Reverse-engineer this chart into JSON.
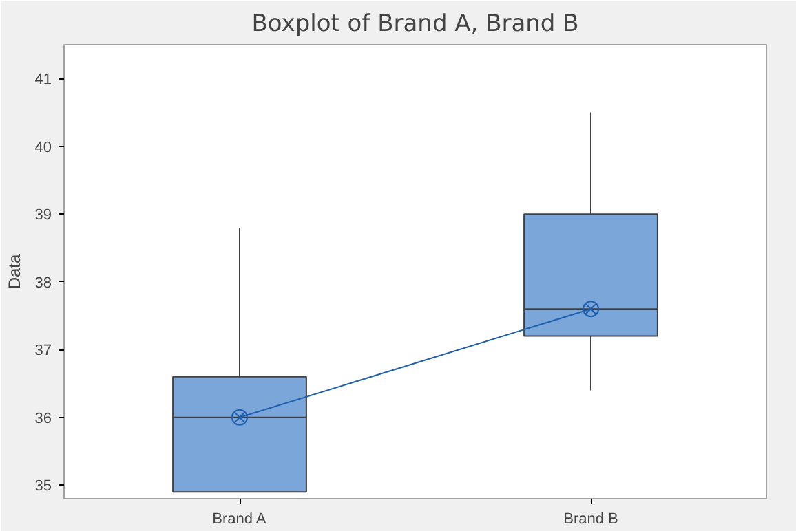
{
  "chart_data": {
    "type": "box",
    "title": "Boxplot of Brand A, Brand B",
    "ylabel": "Data",
    "categories": [
      "Brand A",
      "Brand B"
    ],
    "color": "#7ba6d9",
    "boxes": [
      {
        "low": 34.9,
        "q1": 34.9,
        "median": 36.0,
        "q3": 36.6,
        "high": 38.8,
        "mean": 36.0
      },
      {
        "low": 36.4,
        "q1": 37.2,
        "median": 37.6,
        "q3": 39.0,
        "high": 40.5,
        "mean": 37.6
      }
    ],
    "series": [
      {
        "type": "line",
        "color": "#1f5fae",
        "values": [
          36.0,
          37.6
        ]
      }
    ],
    "ylim": [
      34.8,
      41.5
    ],
    "yticks": [
      35,
      36,
      37,
      38,
      39,
      40,
      41
    ],
    "grid": false
  }
}
